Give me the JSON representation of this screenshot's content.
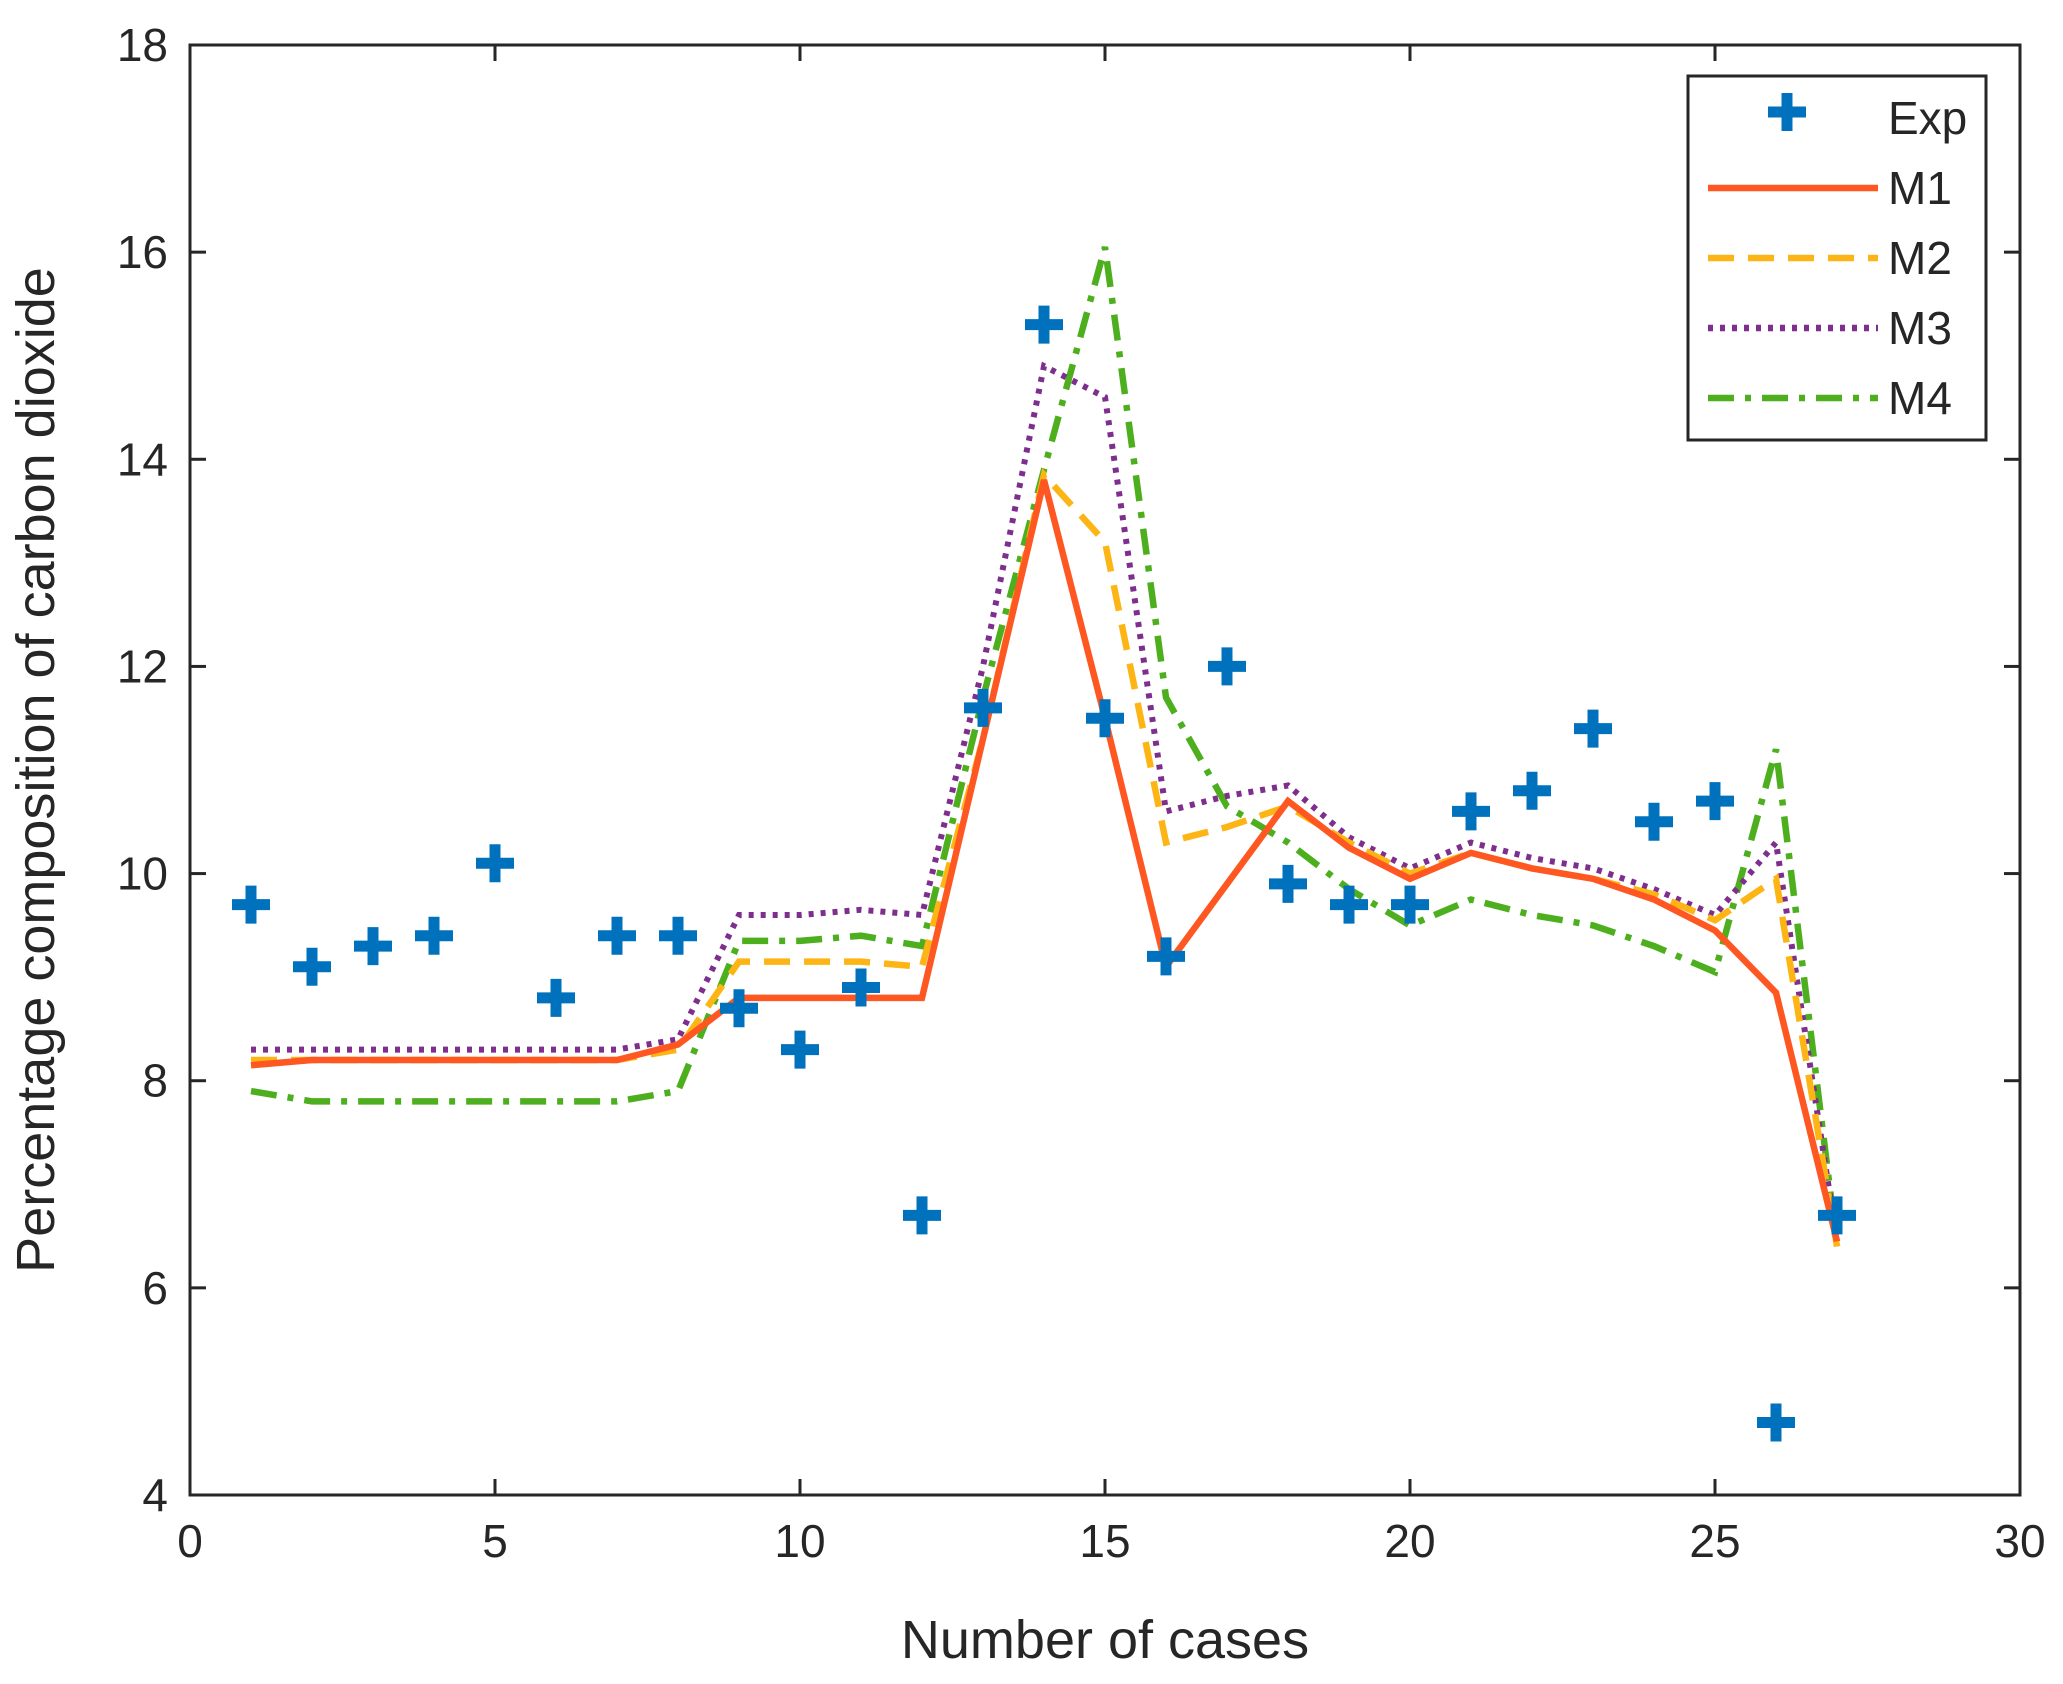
{
  "chart_data": {
    "type": "line",
    "title": "",
    "xlabel": "Number of cases",
    "ylabel": "Percentage composition of carbon dioxide",
    "xlim": [
      0,
      30
    ],
    "ylim": [
      4,
      18
    ],
    "xticks": [
      0,
      5,
      10,
      15,
      20,
      25,
      30
    ],
    "yticks": [
      4,
      6,
      8,
      10,
      12,
      14,
      16,
      18
    ],
    "grid": false,
    "legend_position": "top-right",
    "series": [
      {
        "name": "Exp",
        "style": "markers-plus",
        "color": "#0072BD",
        "x": [
          1,
          2,
          3,
          4,
          5,
          6,
          7,
          8,
          9,
          10,
          11,
          12,
          13,
          14,
          15,
          16,
          17,
          18,
          19,
          20,
          21,
          22,
          23,
          24,
          25,
          26,
          27
        ],
        "values": [
          9.7,
          9.1,
          9.3,
          9.4,
          10.1,
          8.8,
          9.4,
          9.4,
          8.7,
          8.3,
          8.9,
          6.7,
          11.6,
          15.3,
          11.5,
          9.2,
          12.0,
          9.9,
          9.7,
          9.7,
          10.6,
          10.8,
          11.4,
          10.5,
          10.7,
          4.7,
          6.7
        ]
      },
      {
        "name": "M1",
        "style": "solid",
        "color": "#FF5722",
        "x": [
          1,
          2,
          3,
          4,
          5,
          6,
          7,
          8,
          9,
          10,
          11,
          12,
          13,
          14,
          15,
          16,
          17,
          18,
          19,
          20,
          21,
          22,
          23,
          24,
          25,
          26,
          27
        ],
        "values": [
          8.15,
          8.2,
          8.2,
          8.2,
          8.2,
          8.2,
          8.2,
          8.35,
          8.8,
          8.8,
          8.8,
          8.8,
          11.3,
          13.8,
          11.5,
          9.1,
          9.9,
          10.7,
          10.25,
          9.95,
          10.2,
          10.05,
          9.95,
          9.75,
          9.45,
          8.85,
          6.45
        ]
      },
      {
        "name": "M2",
        "style": "dashed",
        "color": "#FDB515",
        "x": [
          1,
          2,
          3,
          4,
          5,
          6,
          7,
          8,
          9,
          10,
          11,
          12,
          13,
          14,
          15,
          16,
          17,
          18,
          19,
          20,
          21,
          22,
          23,
          24,
          25,
          26,
          27
        ],
        "values": [
          8.2,
          8.2,
          8.2,
          8.2,
          8.2,
          8.2,
          8.2,
          8.3,
          9.15,
          9.15,
          9.15,
          9.1,
          11.3,
          13.85,
          13.2,
          10.3,
          10.45,
          10.65,
          10.3,
          10.0,
          10.2,
          10.05,
          9.95,
          9.8,
          9.55,
          9.95,
          6.4
        ]
      },
      {
        "name": "M3",
        "style": "dotted",
        "color": "#7E2F8E",
        "x": [
          1,
          2,
          3,
          4,
          5,
          6,
          7,
          8,
          9,
          10,
          11,
          12,
          13,
          14,
          15,
          16,
          17,
          18,
          19,
          20,
          21,
          22,
          23,
          24,
          25,
          26,
          27
        ],
        "values": [
          8.3,
          8.3,
          8.3,
          8.3,
          8.3,
          8.3,
          8.3,
          8.4,
          9.6,
          9.6,
          9.65,
          9.6,
          12.0,
          14.9,
          14.6,
          10.6,
          10.75,
          10.85,
          10.35,
          10.05,
          10.3,
          10.15,
          10.05,
          9.85,
          9.6,
          10.3,
          6.45
        ]
      },
      {
        "name": "M4",
        "style": "dashdot",
        "color": "#4DAF1E",
        "x": [
          1,
          2,
          3,
          4,
          5,
          6,
          7,
          8,
          9,
          10,
          11,
          12,
          13,
          14,
          15,
          16,
          17,
          18,
          19,
          20,
          21,
          22,
          23,
          24,
          25,
          26,
          27
        ],
        "values": [
          7.9,
          7.8,
          7.8,
          7.8,
          7.8,
          7.8,
          7.8,
          7.9,
          9.35,
          9.35,
          9.4,
          9.3,
          11.7,
          13.9,
          16.05,
          11.7,
          10.65,
          10.3,
          9.85,
          9.5,
          9.75,
          9.6,
          9.5,
          9.3,
          9.05,
          11.2,
          6.4
        ]
      }
    ]
  }
}
